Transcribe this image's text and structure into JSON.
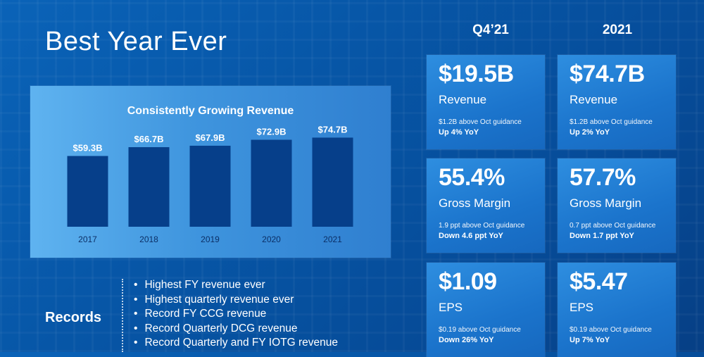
{
  "slide": {
    "title": "Best Year Ever"
  },
  "chart_data": {
    "type": "bar",
    "title": "Consistently Growing Revenue",
    "categories": [
      "2017",
      "2018",
      "2019",
      "2020",
      "2021"
    ],
    "values": [
      59.3,
      66.7,
      67.9,
      72.9,
      74.7
    ],
    "value_labels": [
      "$59.3B",
      "$66.7B",
      "$67.9B",
      "$72.9B",
      "$74.7B"
    ],
    "xlabel": "",
    "ylabel": "",
    "ylim": [
      0,
      80
    ],
    "grid": false,
    "bar_color": "#063f8a"
  },
  "records": {
    "label": "Records",
    "items": [
      "Highest FY revenue ever",
      "Highest quarterly revenue ever",
      "Record FY CCG revenue",
      "Record Quarterly DCG revenue",
      "Record Quarterly and FY IOTG revenue"
    ]
  },
  "columns": [
    "Q4’21",
    "2021"
  ],
  "cards": [
    {
      "value": "$19.5B",
      "metric": "Revenue",
      "note": "$1.2B above Oct guidance",
      "yoy": "Up 4% YoY"
    },
    {
      "value": "$74.7B",
      "metric": "Revenue",
      "note": "$1.2B above Oct guidance",
      "yoy": "Up 2% YoY"
    },
    {
      "value": "55.4%",
      "metric": "Gross Margin",
      "note": "1.9 ppt above Oct guidance",
      "yoy": "Down 4.6 ppt YoY"
    },
    {
      "value": "57.7%",
      "metric": "Gross Margin",
      "note": "0.7 ppt above Oct guidance",
      "yoy": "Down 1.7 ppt YoY"
    },
    {
      "value": "$1.09",
      "metric": "EPS",
      "note": "$0.19 above Oct guidance",
      "yoy": "Down 26% YoY"
    },
    {
      "value": "$5.47",
      "metric": "EPS",
      "note": "$0.19 above Oct guidance",
      "yoy": "Up 7% YoY"
    }
  ],
  "colors": {
    "background": "#0757a8",
    "chart_panel": "#4aa0e4",
    "card": "#1f7ad0",
    "text": "#ffffff"
  }
}
